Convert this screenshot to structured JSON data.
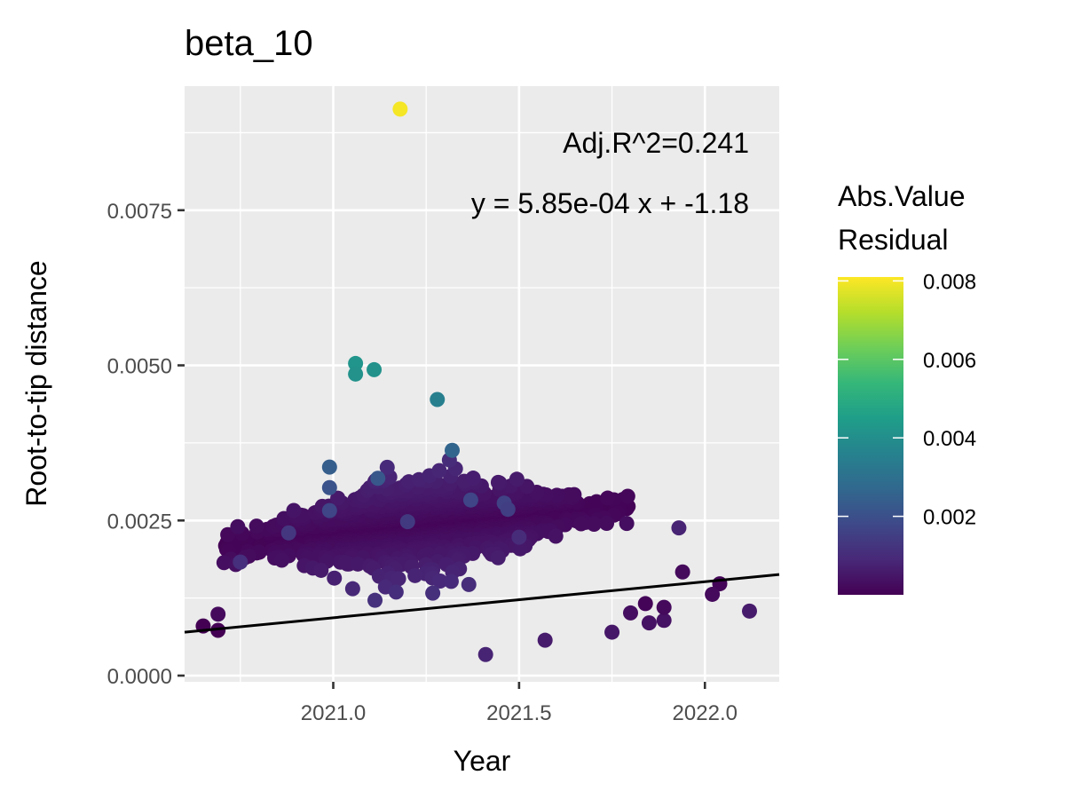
{
  "chart_data": {
    "type": "scatter",
    "title": "beta_10",
    "xlabel": "Year",
    "ylabel": "Root-to-tip distance",
    "xlim": [
      2020.6,
      2022.2
    ],
    "ylim": [
      -0.0001,
      0.0095
    ],
    "x_ticks": [
      "2021.0",
      "2021.5",
      "2022.0"
    ],
    "x_tick_values": [
      2021.0,
      2021.5,
      2022.0
    ],
    "y_ticks": [
      "0.0000",
      "0.0025",
      "0.0050",
      "0.0075"
    ],
    "y_tick_values": [
      0.0,
      0.0025,
      0.005,
      0.0075
    ],
    "grid": true,
    "annotations": [
      "Adj.R^2=0.241",
      "y = 5.85e-04 x + -1.18"
    ],
    "regression": {
      "slope": 0.000585,
      "intercept": -1.18
    },
    "regression_line": [
      [
        2020.6,
        0.0007
      ],
      [
        2022.2,
        0.00163
      ]
    ],
    "legend": {
      "title_lines": [
        "Abs.Value",
        "Residual"
      ],
      "placement": "right",
      "labels": [
        "0.008",
        "0.006",
        "0.004",
        "0.002"
      ],
      "label_values": [
        0.008,
        0.006,
        0.004,
        0.002
      ],
      "range": [
        0.0,
        0.0081
      ],
      "colors": [
        "#440154",
        "#482878",
        "#3e4989",
        "#31688e",
        "#26828e",
        "#1f9e89",
        "#35b779",
        "#6ece58",
        "#b5de2b",
        "#fde725"
      ]
    },
    "outliers": [
      {
        "x": 2021.18,
        "y": 0.00913,
        "r": 0.008
      },
      {
        "x": 2021.06,
        "y": 0.00503,
        "r": 0.0042
      },
      {
        "x": 2021.06,
        "y": 0.00486,
        "r": 0.0041
      },
      {
        "x": 2021.11,
        "y": 0.00493,
        "r": 0.0041
      },
      {
        "x": 2021.28,
        "y": 0.00445,
        "r": 0.0035
      },
      {
        "x": 2021.32,
        "y": 0.00363,
        "r": 0.0026
      },
      {
        "x": 2020.99,
        "y": 0.00336,
        "r": 0.0024
      },
      {
        "x": 2020.99,
        "y": 0.00303,
        "r": 0.0021
      },
      {
        "x": 2020.99,
        "y": 0.00266,
        "r": 0.0017
      },
      {
        "x": 2021.12,
        "y": 0.00318,
        "r": 0.0022
      },
      {
        "x": 2021.37,
        "y": 0.00283,
        "r": 0.0017
      },
      {
        "x": 2021.46,
        "y": 0.00278,
        "r": 0.0016
      },
      {
        "x": 2021.47,
        "y": 0.00268,
        "r": 0.0015
      },
      {
        "x": 2021.2,
        "y": 0.00248,
        "r": 0.0014
      },
      {
        "x": 2020.88,
        "y": 0.0023,
        "r": 0.0013
      },
      {
        "x": 2021.5,
        "y": 0.00223,
        "r": 0.001
      },
      {
        "x": 2021.93,
        "y": 0.00238,
        "r": 0.0008
      },
      {
        "x": 2020.75,
        "y": 0.00183,
        "r": 0.0011
      },
      {
        "x": 2021.94,
        "y": 0.00167,
        "r": 0.0002
      },
      {
        "x": 2022.04,
        "y": 0.00148,
        "r": 0.0001
      },
      {
        "x": 2022.02,
        "y": 0.00131,
        "r": 0.0002
      },
      {
        "x": 2022.12,
        "y": 0.00104,
        "r": 0.0006
      },
      {
        "x": 2021.8,
        "y": 0.00101,
        "r": 0.0003
      },
      {
        "x": 2021.85,
        "y": 0.00085,
        "r": 0.0004
      },
      {
        "x": 2021.89,
        "y": 0.00089,
        "r": 0.0004
      },
      {
        "x": 2021.89,
        "y": 0.0011,
        "r": 0.0002
      },
      {
        "x": 2021.84,
        "y": 0.00116,
        "r": 0.0001
      },
      {
        "x": 2021.75,
        "y": 0.0007,
        "r": 0.0005
      },
      {
        "x": 2021.57,
        "y": 0.00057,
        "r": 0.0006
      },
      {
        "x": 2021.41,
        "y": 0.00034,
        "r": 0.0008
      },
      {
        "x": 2020.65,
        "y": 0.0008,
        "r": 0.0
      },
      {
        "x": 2020.69,
        "y": 0.00073,
        "r": 0.0
      },
      {
        "x": 2020.69,
        "y": 0.00099,
        "r": 0.0002
      }
    ],
    "cloud": {
      "n": 1900,
      "x_range": [
        2020.7,
        2021.8
      ],
      "x_center": 2021.25,
      "x_spread": 0.24,
      "y_min": 0.0006,
      "y_spread_center": 0.0006,
      "y_spread_edge": 0.0002
    }
  }
}
